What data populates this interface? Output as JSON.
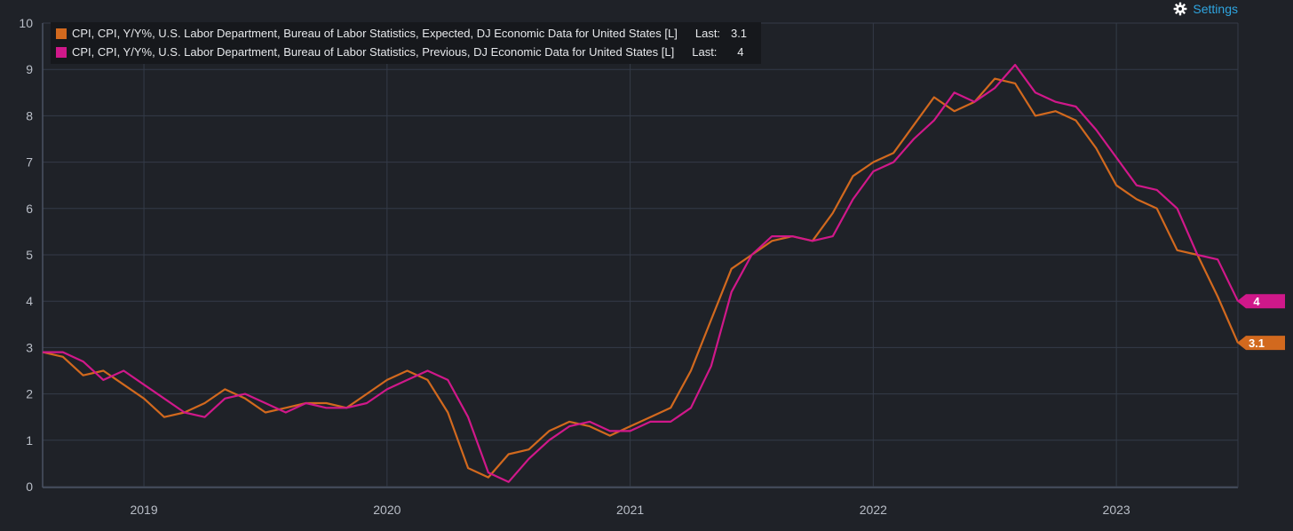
{
  "settings": {
    "label": "Settings",
    "icon": "gear-icon"
  },
  "legend": {
    "last_label": "Last:",
    "items": [
      {
        "label": "CPI, CPI, Y/Y%, U.S. Labor Department, Bureau of Labor Statistics, Expected, DJ Economic Data for United States [L]",
        "last": "3.1",
        "color": "#d2691e"
      },
      {
        "label": "CPI, CPI, Y/Y%, U.S. Labor Department, Bureau of Labor Statistics, Previous, DJ Economic Data for United States [L]",
        "last": "4",
        "color": "#d0188a"
      }
    ]
  },
  "chart_data": {
    "type": "line",
    "x_start": "2018-08",
    "x_end": "2023-07",
    "x_tick_labels": [
      "2019",
      "2020",
      "2021",
      "2022",
      "2023"
    ],
    "ylim": [
      0,
      10
    ],
    "y_tick_labels": [
      "0",
      "1",
      "2",
      "3",
      "4",
      "5",
      "6",
      "7",
      "8",
      "9",
      "10"
    ],
    "grid": true,
    "legend_position": "top-left",
    "series": [
      {
        "name": "CPI, CPI, Y/Y%, U.S. Labor Department, Bureau of Labor Statistics, Expected, DJ Economic Data for United States [L]",
        "color": "#d2691e",
        "last_label": "3.1",
        "points": [
          [
            "2018-08",
            2.9
          ],
          [
            "2018-09",
            2.8
          ],
          [
            "2018-10",
            2.4
          ],
          [
            "2018-11",
            2.5
          ],
          [
            "2018-12",
            2.2
          ],
          [
            "2019-01",
            1.9
          ],
          [
            "2019-02",
            1.5
          ],
          [
            "2019-03",
            1.6
          ],
          [
            "2019-04",
            1.8
          ],
          [
            "2019-05",
            2.1
          ],
          [
            "2019-06",
            1.9
          ],
          [
            "2019-07",
            1.6
          ],
          [
            "2019-08",
            1.7
          ],
          [
            "2019-09",
            1.8
          ],
          [
            "2019-10",
            1.8
          ],
          [
            "2019-11",
            1.7
          ],
          [
            "2019-12",
            2.0
          ],
          [
            "2020-01",
            2.3
          ],
          [
            "2020-02",
            2.5
          ],
          [
            "2020-03",
            2.3
          ],
          [
            "2020-04",
            1.6
          ],
          [
            "2020-05",
            0.4
          ],
          [
            "2020-06",
            0.2
          ],
          [
            "2020-07",
            0.7
          ],
          [
            "2020-08",
            0.8
          ],
          [
            "2020-09",
            1.2
          ],
          [
            "2020-10",
            1.4
          ],
          [
            "2020-11",
            1.3
          ],
          [
            "2020-12",
            1.1
          ],
          [
            "2021-01",
            1.3
          ],
          [
            "2021-02",
            1.5
          ],
          [
            "2021-03",
            1.7
          ],
          [
            "2021-04",
            2.5
          ],
          [
            "2021-05",
            3.6
          ],
          [
            "2021-06",
            4.7
          ],
          [
            "2021-07",
            5.0
          ],
          [
            "2021-08",
            5.3
          ],
          [
            "2021-09",
            5.4
          ],
          [
            "2021-10",
            5.3
          ],
          [
            "2021-11",
            5.9
          ],
          [
            "2021-12",
            6.7
          ],
          [
            "2022-01",
            7.0
          ],
          [
            "2022-02",
            7.2
          ],
          [
            "2022-03",
            7.8
          ],
          [
            "2022-04",
            8.4
          ],
          [
            "2022-05",
            8.1
          ],
          [
            "2022-06",
            8.3
          ],
          [
            "2022-07",
            8.8
          ],
          [
            "2022-08",
            8.7
          ],
          [
            "2022-09",
            8.0
          ],
          [
            "2022-10",
            8.1
          ],
          [
            "2022-11",
            7.9
          ],
          [
            "2022-12",
            7.3
          ],
          [
            "2023-01",
            6.5
          ],
          [
            "2023-02",
            6.2
          ],
          [
            "2023-03",
            6.0
          ],
          [
            "2023-04",
            5.1
          ],
          [
            "2023-05",
            5.0
          ],
          [
            "2023-06",
            4.1
          ],
          [
            "2023-07",
            3.1
          ]
        ]
      },
      {
        "name": "CPI, CPI, Y/Y%, U.S. Labor Department, Bureau of Labor Statistics, Previous, DJ Economic Data for United States [L]",
        "color": "#d0188a",
        "last_label": "4",
        "points": [
          [
            "2018-08",
            2.9
          ],
          [
            "2018-09",
            2.9
          ],
          [
            "2018-10",
            2.7
          ],
          [
            "2018-11",
            2.3
          ],
          [
            "2018-12",
            2.5
          ],
          [
            "2019-01",
            2.2
          ],
          [
            "2019-02",
            1.9
          ],
          [
            "2019-03",
            1.6
          ],
          [
            "2019-04",
            1.5
          ],
          [
            "2019-05",
            1.9
          ],
          [
            "2019-06",
            2.0
          ],
          [
            "2019-07",
            1.8
          ],
          [
            "2019-08",
            1.6
          ],
          [
            "2019-09",
            1.8
          ],
          [
            "2019-10",
            1.7
          ],
          [
            "2019-11",
            1.7
          ],
          [
            "2019-12",
            1.8
          ],
          [
            "2020-01",
            2.1
          ],
          [
            "2020-02",
            2.3
          ],
          [
            "2020-03",
            2.5
          ],
          [
            "2020-04",
            2.3
          ],
          [
            "2020-05",
            1.5
          ],
          [
            "2020-06",
            0.3
          ],
          [
            "2020-07",
            0.1
          ],
          [
            "2020-08",
            0.6
          ],
          [
            "2020-09",
            1.0
          ],
          [
            "2020-10",
            1.3
          ],
          [
            "2020-11",
            1.4
          ],
          [
            "2020-12",
            1.2
          ],
          [
            "2021-01",
            1.2
          ],
          [
            "2021-02",
            1.4
          ],
          [
            "2021-03",
            1.4
          ],
          [
            "2021-04",
            1.7
          ],
          [
            "2021-05",
            2.6
          ],
          [
            "2021-06",
            4.2
          ],
          [
            "2021-07",
            5.0
          ],
          [
            "2021-08",
            5.4
          ],
          [
            "2021-09",
            5.4
          ],
          [
            "2021-10",
            5.3
          ],
          [
            "2021-11",
            5.4
          ],
          [
            "2021-12",
            6.2
          ],
          [
            "2022-01",
            6.8
          ],
          [
            "2022-02",
            7.0
          ],
          [
            "2022-03",
            7.5
          ],
          [
            "2022-04",
            7.9
          ],
          [
            "2022-05",
            8.5
          ],
          [
            "2022-06",
            8.3
          ],
          [
            "2022-07",
            8.6
          ],
          [
            "2022-08",
            9.1
          ],
          [
            "2022-09",
            8.5
          ],
          [
            "2022-10",
            8.3
          ],
          [
            "2022-11",
            8.2
          ],
          [
            "2022-12",
            7.7
          ],
          [
            "2023-01",
            7.1
          ],
          [
            "2023-02",
            6.5
          ],
          [
            "2023-03",
            6.4
          ],
          [
            "2023-04",
            6.0
          ],
          [
            "2023-05",
            5.0
          ],
          [
            "2023-06",
            4.9
          ],
          [
            "2023-07",
            4.0
          ]
        ]
      }
    ]
  }
}
